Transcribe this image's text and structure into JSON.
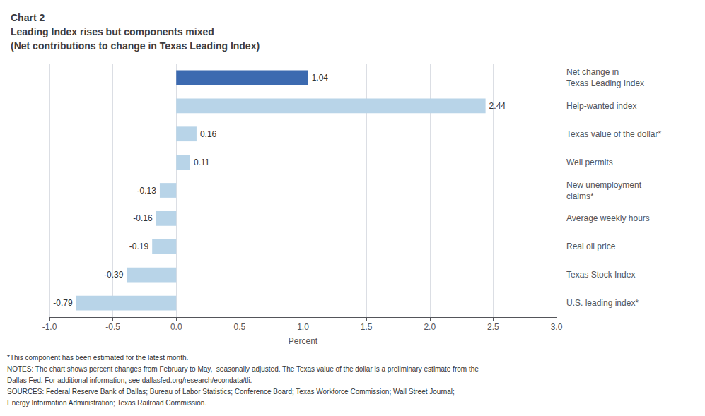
{
  "chart_data": {
    "type": "bar",
    "orientation": "horizontal",
    "title": [
      "Chart 2",
      "Leading Index rises but components mixed",
      "(Net contributions to change in Texas Leading Index)"
    ],
    "categories": [
      "Net change in\nTexas Leading Index",
      "Help-wanted index",
      "Texas value of the dollar*",
      "Well permits",
      "New unemployment\nclaims*",
      "Average weekly hours",
      "Real oil price",
      "Texas Stock Index",
      "U.S. leading index*"
    ],
    "values": [
      1.04,
      2.44,
      0.16,
      0.11,
      -0.13,
      -0.16,
      -0.19,
      -0.39,
      -0.79
    ],
    "colors": [
      "#3c6ab0",
      "#b8d4e8",
      "#b8d4e8",
      "#b8d4e8",
      "#b8d4e8",
      "#b8d4e8",
      "#b8d4e8",
      "#b8d4e8",
      "#b8d4e8"
    ],
    "xlabel": "Percent",
    "xlim": [
      -1.0,
      3.0
    ],
    "xticks": [
      {
        "value": -1.0,
        "label": "-1.0"
      },
      -0.5,
      {
        "value": 0.0,
        "label": "0.0"
      },
      0.5,
      {
        "value": 1.0,
        "label": "1.0"
      },
      1.5,
      {
        "value": 2.0,
        "label": "2.0"
      },
      2.5,
      {
        "value": 3.0,
        "label": "3.0"
      }
    ],
    "grid": true,
    "data_labels": true,
    "annotations": [
      "*This component has been estimated for the latest month.",
      "NOTES: The chart shows percent changes from February to May,  seasonally adjusted. The Texas value of the dollar is a preliminary estimate from the",
      "Dallas Fed. For additional information, see dallasfed.org/research/econdata/tli.",
      "SOURCES: Federal Reserve Bank of Dallas; Bureau of Labor Statistics; Conference Board; Texas Workforce Commission; Wall Street Journal;",
      "Energy Information Administration; Texas Railroad Commission."
    ]
  }
}
